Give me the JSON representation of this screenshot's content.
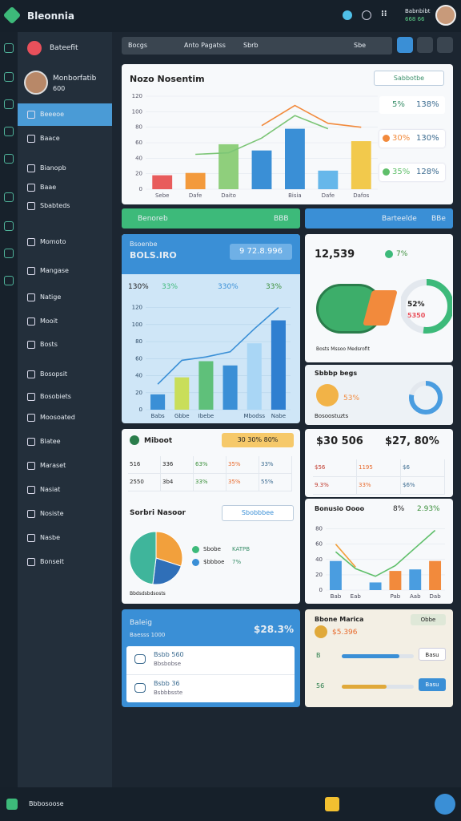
{
  "topbar": {
    "brand": "Bleonnia",
    "user_name": "Babnbibt",
    "user_sub": "668 66"
  },
  "sidebar": {
    "tag": "Bateefit",
    "profile_name": "Monborfatib",
    "profile_sub": "600",
    "items": [
      "Beeeoe",
      "Baace",
      "Bianopb",
      "Baae",
      "Sbabteds",
      "Momoto",
      "Mangase",
      "Natige",
      "Mooit",
      "Bosts",
      "Bosopsit",
      "Bosobiets",
      "Moosoated",
      "Blatee",
      "Maraset",
      "Nasiat",
      "Nosiste",
      "Nasbe",
      "Bonseit"
    ]
  },
  "toolbar": {
    "filters": [
      "Bocgs",
      "Anto Pagatss",
      "Sbrb"
    ],
    "search": "Sbe"
  },
  "overview": {
    "title": "Nozo Nosentim",
    "button": "Sabbotbe",
    "legend": [
      {
        "pct": "5%",
        "value": "138%"
      },
      {
        "pct": "30%",
        "value": "130%"
      },
      {
        "pct": "35%",
        "value": "128%"
      }
    ],
    "chart": {
      "type": "bar",
      "categories": [
        "Sebe",
        "Dafe",
        "Daito",
        null,
        "Bisia",
        "Dafe",
        "Dafos"
      ],
      "bars": {
        "values": [
          18,
          21,
          58,
          50,
          78,
          24,
          62
        ],
        "colors": [
          "#e85c5c",
          "#f39a3c",
          "#8fcf7c",
          "#3a8fd6",
          "#3a8fd6",
          "#66b7ea",
          "#f2c94c"
        ]
      },
      "lines": [
        {
          "color": "#7cc576",
          "values": [
            null,
            45,
            47,
            66,
            95,
            78,
            null
          ]
        },
        {
          "color": "#f28a3c",
          "values": [
            null,
            null,
            null,
            82,
            108,
            85,
            80
          ]
        }
      ],
      "ylim": [
        0,
        120
      ],
      "yticks": [
        0,
        20,
        40,
        60,
        80,
        100,
        120
      ]
    }
  },
  "strips": [
    {
      "label": "Benoreb",
      "value": "BBB"
    },
    {
      "label": "Barteelde",
      "value": "BBe"
    }
  ],
  "growth": {
    "title": "Bsoenbe",
    "subtitle": "BOLS.IRO",
    "badge": "9 72.8.996",
    "stats": [
      "130%",
      "33%",
      "330%",
      "33%"
    ],
    "chart": {
      "type": "bar",
      "categories": [
        "Babs",
        "Gbbe",
        "Ibebe",
        null,
        "Mbodss",
        "Nabe"
      ],
      "bars": {
        "values": [
          18,
          38,
          57,
          52,
          78,
          105
        ],
        "colors": [
          "#3a8fd6",
          "#c9de5a",
          "#5fc07a",
          "#3a8fd6",
          "#a9d6f5",
          "#2f7fd0"
        ]
      },
      "lines": [
        {
          "color": "#3a8fd6",
          "values": [
            30,
            58,
            62,
            68,
            95,
            120
          ]
        }
      ],
      "ylim": [
        0,
        130
      ],
      "yticks": [
        0,
        20,
        40,
        60,
        80,
        100,
        120
      ]
    }
  },
  "sales": {
    "value": "12,539",
    "change": "7%",
    "legend": "Bosts Mssoo Medsrofit",
    "donut": {
      "value": 52,
      "color": "#3dba7a"
    },
    "donut_label": "52%",
    "donut_sub": "5350"
  },
  "budget": {
    "title": "Sbbbp begs",
    "value": "53%",
    "sub": "Bosoostuzts",
    "donut": {
      "value": 78,
      "color": "#4a9de0"
    }
  },
  "ledger": {
    "title": "Miboot",
    "badge": "30 30% 80%",
    "rows": [
      [
        "516",
        "336",
        "63%",
        "35%",
        "33%"
      ],
      [
        "2550",
        "3b4",
        "33%",
        "35%",
        "55%"
      ]
    ]
  },
  "totals": {
    "left": "$30 506",
    "right": "$27, 80%",
    "rows": [
      [
        "$56",
        "1195",
        "$6"
      ],
      [
        "9.3%",
        "33%",
        "$6%"
      ]
    ]
  },
  "share": {
    "title": "Sorbri Nasoor",
    "button": "Sbobbbee",
    "items": [
      {
        "label": "Sbobe",
        "value": "KATPB"
      },
      {
        "label": "$bbboe",
        "value": "7%"
      }
    ],
    "legend": "Bbdsdsbdsosts",
    "pie": {
      "type": "pie",
      "values": [
        30,
        22,
        48
      ],
      "colors": [
        "#f2a03c",
        "#2f6fb8",
        "#3fb59b"
      ]
    }
  },
  "trend": {
    "title": "Bonusio Oooo",
    "stat1": "8%",
    "stat2": "2.93%",
    "chart": {
      "type": "bar",
      "categories": [
        "Bab",
        "Eab",
        null,
        "Pab",
        "Aab",
        "Dab"
      ],
      "bars": {
        "values": [
          38,
          0,
          10,
          25,
          27,
          38
        ],
        "colors": [
          "#4a9de0",
          "#4a9de0",
          "#4a9de0",
          "#f28a3c",
          "#4a9de0",
          "#f28a3c"
        ]
      },
      "lines": [
        {
          "color": "#5fbf6a",
          "values": [
            50,
            28,
            18,
            32,
            55,
            78
          ]
        },
        {
          "color": "#f2a03c",
          "values": [
            60,
            30,
            null,
            null,
            null,
            null
          ]
        }
      ],
      "ylim": [
        0,
        90
      ],
      "yticks": [
        0,
        20,
        40,
        60,
        80
      ]
    }
  },
  "balance": {
    "title": "Baleig",
    "value": "$28.3%",
    "sub": "Baesss 1000",
    "items": [
      {
        "name": "Bsbb 560",
        "sub": "Bbsbobse"
      },
      {
        "name": "Bsbb 36",
        "sub": "Bsbbbsste"
      }
    ]
  },
  "goals": {
    "title": "Bbone Marica",
    "value": "$5.396",
    "badge": "Obbe",
    "rows": [
      {
        "label": "B",
        "button": "Basu",
        "progress": 80
      },
      {
        "label": "56",
        "button": "Basu",
        "progress": 62
      }
    ]
  },
  "bottombar": {
    "label": "Bbbosoose"
  }
}
